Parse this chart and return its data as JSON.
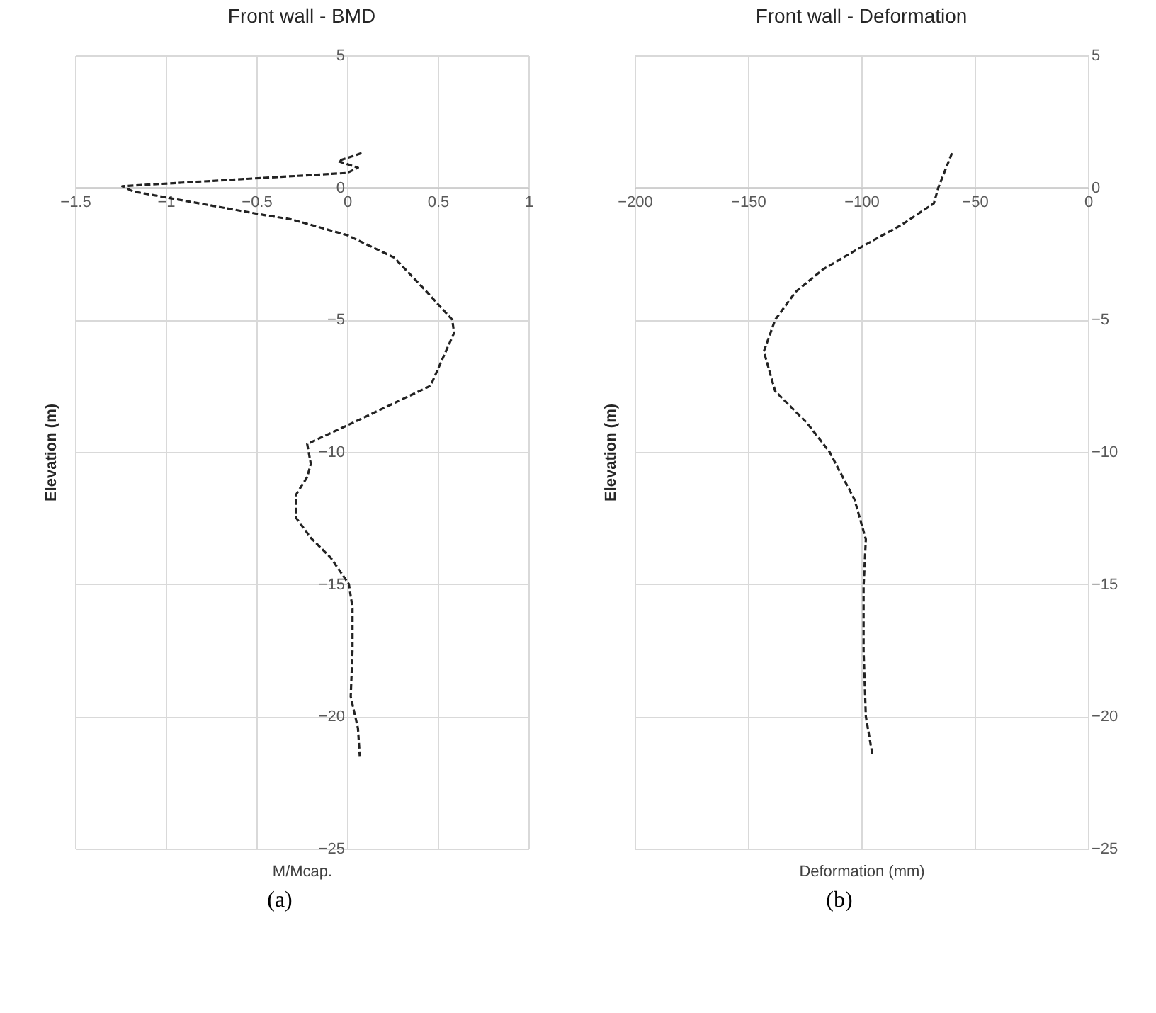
{
  "chart_data": [
    {
      "type": "line",
      "title": "Front wall - BMD",
      "xlabel": "M/Mcap.",
      "ylabel": "Elevation (m)",
      "annotations": [
        "(a)"
      ],
      "color": "#222222",
      "line_style": "dashed",
      "grid": true,
      "x": [
        0.08,
        -0.05,
        0.06,
        0,
        -1.24,
        -1.18,
        -0.45,
        -0.31,
        0,
        0.26,
        0.44,
        0.58,
        0.59,
        0.46,
        0,
        -0.22,
        -0.2,
        -0.22,
        -0.28,
        -0.28,
        -0.2,
        -0.09,
        0.01,
        0.03,
        0.03,
        0.02,
        0.06,
        0.07
      ],
      "values": [
        1.3,
        1.0,
        0.75,
        0.55,
        0.05,
        -0.15,
        -1.05,
        -1.2,
        -1.8,
        -2.65,
        -3.95,
        -5.0,
        -5.5,
        -7.5,
        -9.0,
        -9.7,
        -10.45,
        -10.95,
        -11.6,
        -12.5,
        -13.25,
        -14.0,
        -15.0,
        -15.9,
        -17.5,
        -19.25,
        -20.45,
        -21.5
      ],
      "xlim": [
        -1.5,
        1
      ],
      "xticks": [
        -1.5,
        -1,
        -0.5,
        0,
        0.5,
        1
      ],
      "ylim": [
        -25,
        5
      ],
      "yticks": [
        -25,
        -20,
        -15,
        -10,
        -5,
        0,
        5
      ]
    },
    {
      "type": "line",
      "title": "Front wall - Deformation",
      "xlabel": "Deformation (mm)",
      "ylabel": "Elevation (m)",
      "annotations": [
        "(b)"
      ],
      "color": "#222222",
      "line_style": "dashed",
      "grid": true,
      "x": [
        -60,
        -66,
        -68,
        -82,
        -99,
        -117,
        -129,
        -138,
        -143,
        -138,
        -124,
        -114,
        -103,
        -98,
        -99,
        -99,
        -98,
        -95
      ],
      "values": [
        1.3,
        0,
        -0.6,
        -1.4,
        -2.2,
        -3.1,
        -3.95,
        -5,
        -6.2,
        -7.7,
        -8.9,
        -10,
        -11.8,
        -13.3,
        -15.1,
        -17.5,
        -20,
        -21.5
      ],
      "xlim": [
        -200,
        0
      ],
      "xticks": [
        -200,
        -150,
        -100,
        -50,
        0
      ],
      "ylim": [
        -25,
        5
      ],
      "yticks": [
        -25,
        -20,
        -15,
        -10,
        -5,
        0,
        5
      ]
    }
  ]
}
